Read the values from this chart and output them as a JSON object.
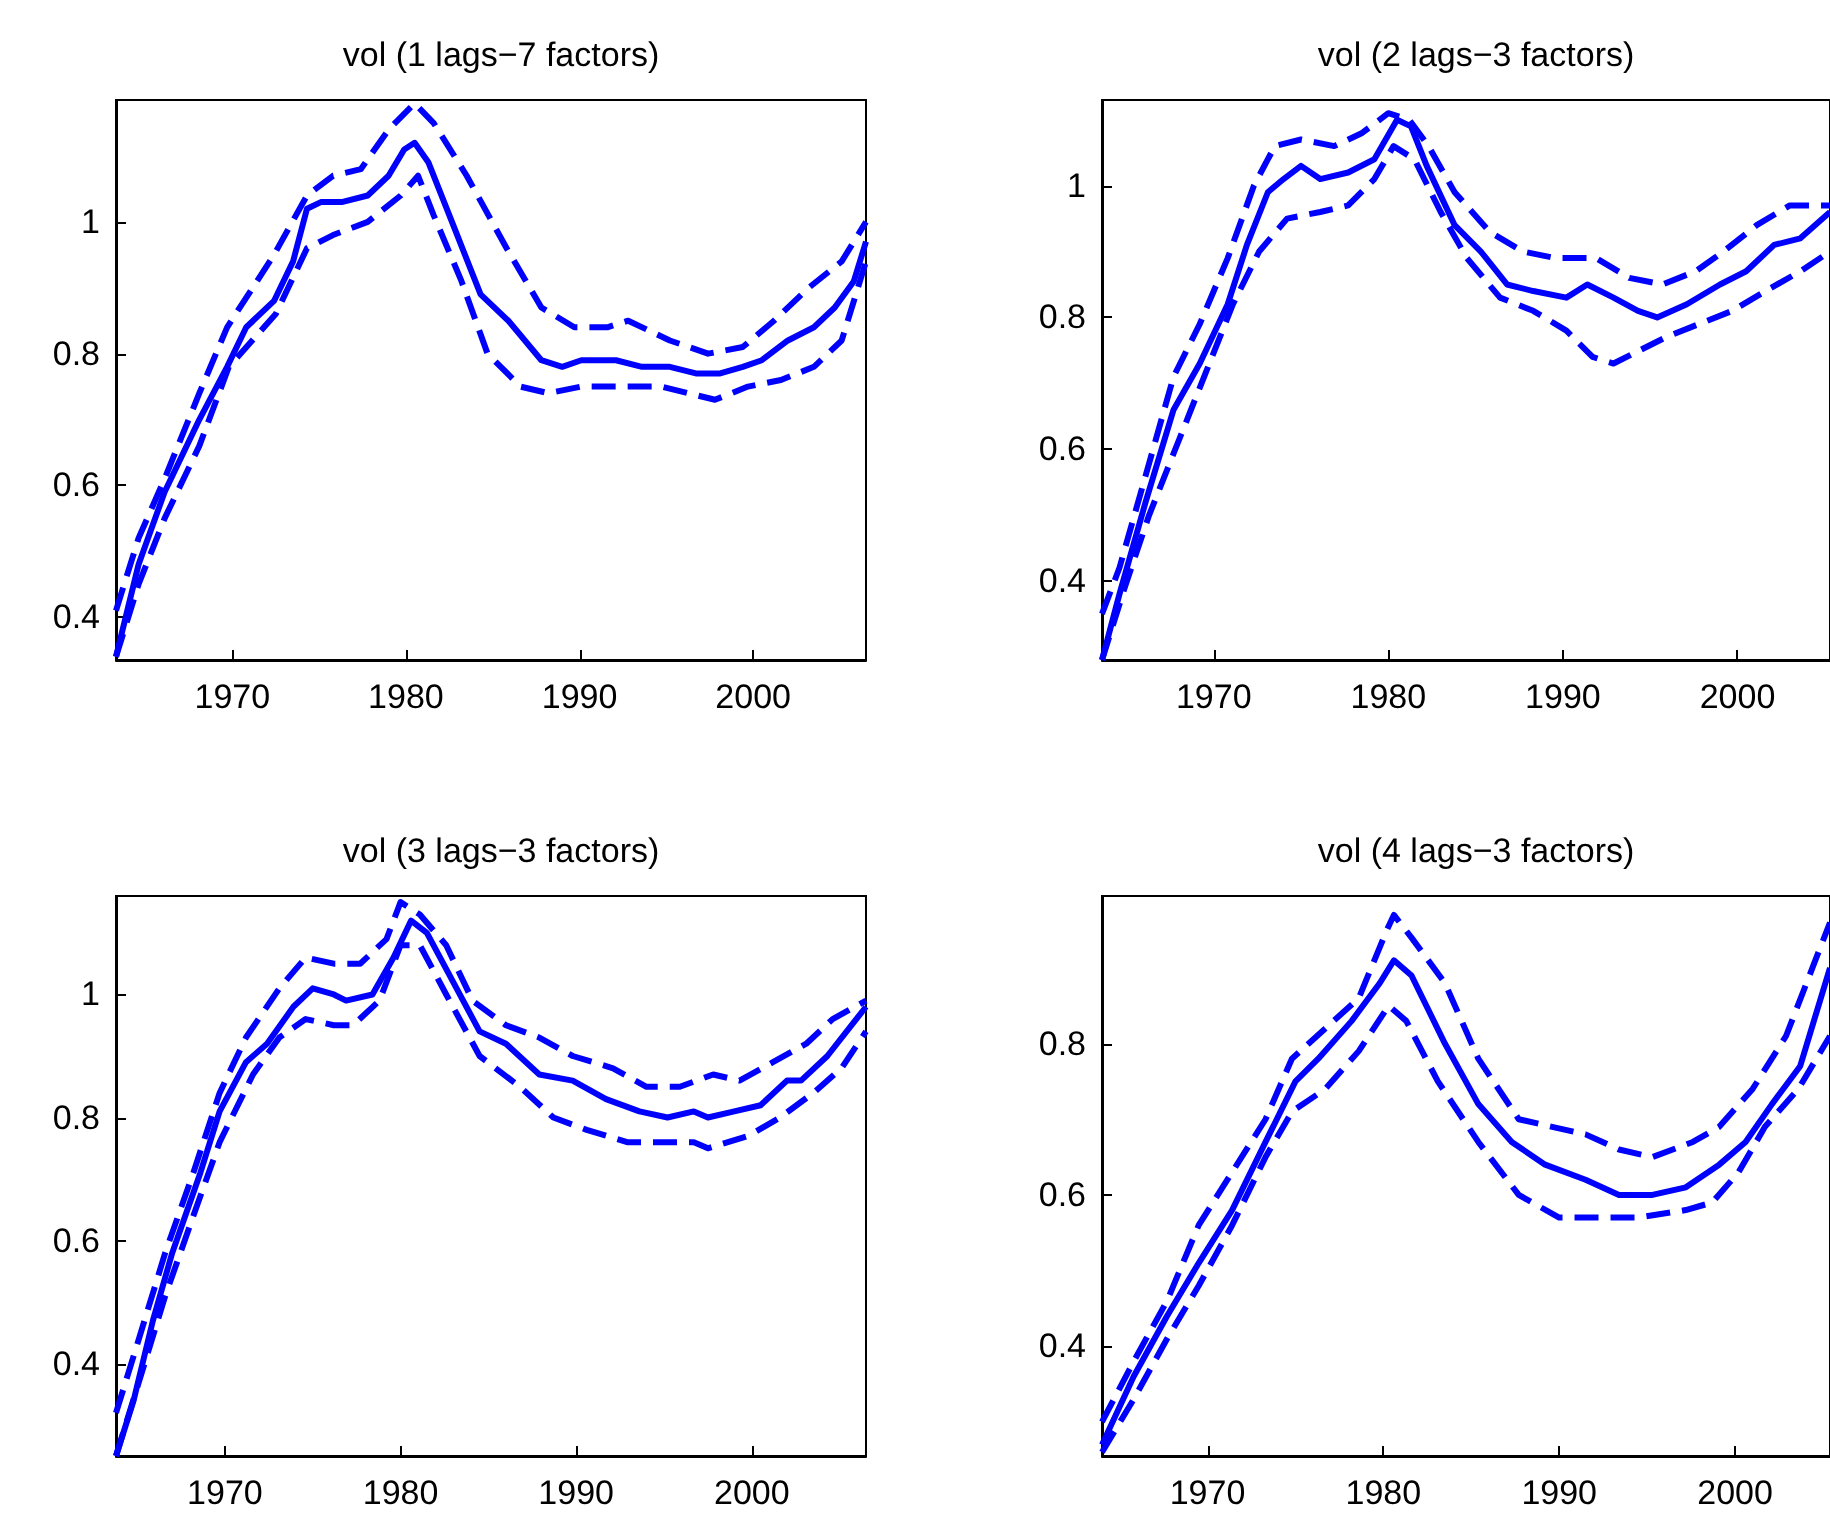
{
  "chart_data": [
    {
      "type": "line",
      "title": "vol (1 lags−7 factors)",
      "xlim": [
        1963.3,
        2006.5
      ],
      "xticks": [
        1970,
        1980,
        1990,
        2000
      ],
      "ylim": [
        0.335,
        1.185
      ],
      "yticks": [
        0.4,
        0.6,
        0.8,
        1
      ],
      "grid": false,
      "series": [
        {
          "color": "#0000ff",
          "line_style": "solid",
          "x": [
            1963.3,
            1964.6,
            1966.1,
            1968.1,
            1969.7,
            1970.8,
            1972.4,
            1973.5,
            1974.3,
            1975.1,
            1976.3,
            1977.8,
            1979.0,
            1979.9,
            1980.5,
            1981.3,
            1982.8,
            1984.3,
            1985.9,
            1987.8,
            1989.0,
            1990.1,
            1992.1,
            1993.6,
            1995.2,
            1996.7,
            1998.1,
            1999.4,
            2000.5,
            2002.0,
            2003.5,
            2004.7,
            2005.8,
            2006.5
          ],
          "values": [
            0.34,
            0.48,
            0.59,
            0.7,
            0.78,
            0.84,
            0.88,
            0.94,
            1.02,
            1.03,
            1.03,
            1.04,
            1.07,
            1.11,
            1.12,
            1.09,
            0.99,
            0.89,
            0.85,
            0.79,
            0.78,
            0.79,
            0.79,
            0.78,
            0.78,
            0.77,
            0.77,
            0.78,
            0.79,
            0.82,
            0.84,
            0.87,
            0.91,
            0.97
          ]
        },
        {
          "color": "#0000ff",
          "line_style": "dashed",
          "x": [
            1963.3,
            1964.6,
            1966.1,
            1968.1,
            1969.7,
            1972.4,
            1974.3,
            1975.8,
            1977.4,
            1979.0,
            1980.5,
            1981.6,
            1983.5,
            1985.8,
            1987.8,
            1989.7,
            1991.6,
            1992.8,
            1995.2,
            1997.4,
            1999.4,
            2001.2,
            2003.2,
            2005.1,
            2006.5
          ],
          "values": [
            0.41,
            0.52,
            0.61,
            0.74,
            0.84,
            0.95,
            1.04,
            1.07,
            1.08,
            1.14,
            1.18,
            1.15,
            1.07,
            0.96,
            0.87,
            0.84,
            0.84,
            0.85,
            0.82,
            0.8,
            0.81,
            0.85,
            0.9,
            0.94,
            1.0
          ]
        },
        {
          "color": "#0000ff",
          "line_style": "dashed",
          "x": [
            1963.3,
            1964.6,
            1966.1,
            1968.1,
            1969.8,
            1972.5,
            1974.3,
            1975.8,
            1977.8,
            1979.7,
            1980.7,
            1981.6,
            1983.2,
            1984.7,
            1986.6,
            1988.2,
            1990.1,
            1992.4,
            1994.7,
            1997.8,
            1999.7,
            2001.6,
            2003.5,
            2005.1,
            2006.5
          ],
          "values": [
            0.34,
            0.45,
            0.55,
            0.66,
            0.78,
            0.86,
            0.96,
            0.98,
            1.0,
            1.04,
            1.07,
            1.01,
            0.91,
            0.8,
            0.75,
            0.74,
            0.75,
            0.75,
            0.75,
            0.73,
            0.75,
            0.76,
            0.78,
            0.82,
            0.94
          ]
        }
      ]
    },
    {
      "type": "line",
      "title": "vol (2 lags−3 factors)",
      "xlim": [
        1963.6,
        2005.3
      ],
      "xticks": [
        1970,
        1980,
        1990,
        2000
      ],
      "ylim": [
        0.28,
        1.13
      ],
      "yticks": [
        0.4,
        0.6,
        0.8,
        1
      ],
      "grid": false,
      "series": [
        {
          "color": "#0000ff",
          "line_style": "solid",
          "x": [
            1963.6,
            1964.6,
            1966.1,
            1967.7,
            1969.2,
            1970.8,
            1971.9,
            1973.1,
            1974.0,
            1975.0,
            1976.1,
            1977.7,
            1979.2,
            1980.5,
            1981.3,
            1982.2,
            1983.8,
            1985.3,
            1986.8,
            1988.3,
            1990.2,
            1991.4,
            1992.9,
            1994.3,
            1995.4,
            1997.1,
            1999.0,
            2000.5,
            2002.1,
            2003.6,
            2005.3
          ],
          "values": [
            0.28,
            0.38,
            0.52,
            0.66,
            0.73,
            0.82,
            0.91,
            0.99,
            1.01,
            1.03,
            1.01,
            1.02,
            1.04,
            1.1,
            1.09,
            1.03,
            0.94,
            0.9,
            0.85,
            0.84,
            0.83,
            0.85,
            0.83,
            0.81,
            0.8,
            0.82,
            0.85,
            0.87,
            0.91,
            0.92,
            0.96
          ]
        },
        {
          "color": "#0000ff",
          "line_style": "dashed",
          "x": [
            1963.6,
            1964.6,
            1966.1,
            1967.7,
            1969.2,
            1970.8,
            1972.3,
            1973.5,
            1975.0,
            1976.9,
            1978.5,
            1980.0,
            1981.2,
            1982.3,
            1983.8,
            1985.8,
            1987.7,
            1989.6,
            1991.9,
            1993.8,
            1995.7,
            1997.6,
            1999.2,
            2001.1,
            2003.0,
            2005.3
          ],
          "values": [
            0.35,
            0.42,
            0.56,
            0.71,
            0.79,
            0.89,
            1.0,
            1.06,
            1.07,
            1.06,
            1.08,
            1.11,
            1.1,
            1.06,
            0.99,
            0.93,
            0.9,
            0.89,
            0.89,
            0.86,
            0.85,
            0.87,
            0.9,
            0.94,
            0.97,
            0.97
          ]
        },
        {
          "color": "#0000ff",
          "line_style": "dashed",
          "x": [
            1963.6,
            1964.9,
            1966.3,
            1968.1,
            1969.6,
            1971.1,
            1972.6,
            1974.2,
            1976.1,
            1977.7,
            1979.2,
            1980.3,
            1981.5,
            1983.0,
            1984.5,
            1986.4,
            1988.3,
            1990.2,
            1991.7,
            1992.9,
            1994.4,
            1995.9,
            1997.8,
            1999.7,
            2001.6,
            2003.6,
            2005.3
          ],
          "values": [
            0.28,
            0.39,
            0.5,
            0.62,
            0.72,
            0.82,
            0.9,
            0.95,
            0.96,
            0.97,
            1.01,
            1.06,
            1.04,
            0.96,
            0.89,
            0.83,
            0.81,
            0.78,
            0.74,
            0.73,
            0.75,
            0.77,
            0.79,
            0.81,
            0.84,
            0.87,
            0.9
          ]
        }
      ]
    },
    {
      "type": "line",
      "title": "vol (3 lags−3 factors)",
      "xlim": [
        1963.8,
        2006.5
      ],
      "xticks": [
        1970,
        1980,
        1990,
        2000
      ],
      "ylim": [
        0.25,
        1.16
      ],
      "yticks": [
        0.4,
        0.6,
        0.8,
        1
      ],
      "grid": false,
      "series": [
        {
          "color": "#0000ff",
          "line_style": "solid",
          "x": [
            1963.8,
            1964.8,
            1965.9,
            1967.0,
            1968.6,
            1969.7,
            1971.2,
            1972.4,
            1973.9,
            1975.0,
            1976.2,
            1976.9,
            1978.4,
            1979.6,
            1980.6,
            1981.5,
            1983.0,
            1984.5,
            1986.0,
            1987.9,
            1989.8,
            1991.7,
            1993.6,
            1995.2,
            1996.7,
            1997.5,
            1999.0,
            2000.5,
            2002.0,
            2002.8,
            2004.3,
            2006.5
          ],
          "values": [
            0.25,
            0.34,
            0.47,
            0.58,
            0.71,
            0.81,
            0.89,
            0.92,
            0.98,
            1.01,
            1.0,
            0.99,
            1.0,
            1.06,
            1.12,
            1.1,
            1.02,
            0.94,
            0.92,
            0.87,
            0.86,
            0.83,
            0.81,
            0.8,
            0.81,
            0.8,
            0.81,
            0.82,
            0.86,
            0.86,
            0.9,
            0.98
          ]
        },
        {
          "color": "#0000ff",
          "line_style": "dashed",
          "x": [
            1963.8,
            1965.1,
            1966.6,
            1968.2,
            1969.7,
            1971.2,
            1973.1,
            1974.6,
            1976.2,
            1977.7,
            1979.2,
            1980.0,
            1981.1,
            1982.6,
            1984.1,
            1986.0,
            1987.9,
            1989.8,
            1992.1,
            1994.0,
            1995.9,
            1997.8,
            1999.3,
            2001.2,
            2003.1,
            2004.6,
            2006.5
          ],
          "values": [
            0.32,
            0.44,
            0.58,
            0.71,
            0.84,
            0.93,
            1.01,
            1.06,
            1.05,
            1.05,
            1.09,
            1.15,
            1.13,
            1.08,
            0.99,
            0.95,
            0.93,
            0.9,
            0.88,
            0.85,
            0.85,
            0.87,
            0.86,
            0.89,
            0.92,
            0.96,
            0.99
          ]
        },
        {
          "color": "#0000ff",
          "line_style": "dashed",
          "x": [
            1963.8,
            1965.1,
            1966.6,
            1968.2,
            1969.7,
            1971.6,
            1973.1,
            1974.6,
            1976.2,
            1977.3,
            1978.8,
            1980.0,
            1981.1,
            1982.6,
            1984.5,
            1986.8,
            1988.7,
            1990.6,
            1992.9,
            1994.8,
            1996.7,
            1997.5,
            1999.8,
            2001.6,
            2003.5,
            2005.1,
            2006.5
          ],
          "values": [
            0.25,
            0.37,
            0.51,
            0.64,
            0.76,
            0.87,
            0.93,
            0.96,
            0.95,
            0.95,
            0.99,
            1.08,
            1.08,
            1.0,
            0.9,
            0.85,
            0.8,
            0.78,
            0.76,
            0.76,
            0.76,
            0.75,
            0.77,
            0.8,
            0.84,
            0.88,
            0.94
          ]
        }
      ]
    },
    {
      "type": "line",
      "title": "vol (4 lags−3 factors)",
      "xlim": [
        1964.0,
        2005.4
      ],
      "xticks": [
        1970,
        1980,
        1990,
        2000
      ],
      "ylim": [
        0.255,
        0.995
      ],
      "yticks": [
        0.4,
        0.6,
        0.8
      ],
      "grid": false,
      "series": [
        {
          "color": "#0000ff",
          "line_style": "solid",
          "x": [
            1964.0,
            1965.8,
            1967.7,
            1969.5,
            1971.4,
            1973.3,
            1975.0,
            1976.3,
            1978.2,
            1979.8,
            1980.6,
            1981.6,
            1983.5,
            1985.4,
            1987.3,
            1989.2,
            1991.5,
            1993.4,
            1995.3,
            1997.2,
            1999.1,
            2000.6,
            2002.1,
            2003.7,
            2005.4
          ],
          "values": [
            0.27,
            0.36,
            0.44,
            0.51,
            0.58,
            0.67,
            0.75,
            0.78,
            0.83,
            0.88,
            0.91,
            0.89,
            0.8,
            0.72,
            0.67,
            0.64,
            0.62,
            0.6,
            0.6,
            0.61,
            0.64,
            0.67,
            0.72,
            0.77,
            0.9
          ]
        },
        {
          "color": "#0000ff",
          "line_style": "dashed",
          "x": [
            1964.0,
            1965.8,
            1967.7,
            1969.5,
            1971.4,
            1973.3,
            1974.8,
            1976.7,
            1978.6,
            1980.2,
            1980.6,
            1981.6,
            1983.5,
            1985.4,
            1987.7,
            1989.6,
            1991.5,
            1993.4,
            1995.3,
            1997.6,
            1999.1,
            2001.0,
            2002.9,
            2004.4,
            2005.4
          ],
          "values": [
            0.3,
            0.38,
            0.46,
            0.56,
            0.63,
            0.7,
            0.78,
            0.82,
            0.86,
            0.95,
            0.97,
            0.94,
            0.88,
            0.78,
            0.7,
            0.69,
            0.68,
            0.66,
            0.65,
            0.67,
            0.69,
            0.74,
            0.81,
            0.9,
            0.96
          ]
        },
        {
          "color": "#0000ff",
          "line_style": "dashed",
          "x": [
            1964.0,
            1965.8,
            1967.7,
            1969.5,
            1971.4,
            1973.3,
            1974.8,
            1976.7,
            1978.6,
            1980.3,
            1981.3,
            1983.1,
            1985.4,
            1987.7,
            1990.0,
            1992.3,
            1994.5,
            1997.2,
            1998.7,
            2000.2,
            2001.7,
            2003.6,
            2005.4
          ],
          "values": [
            0.26,
            0.33,
            0.41,
            0.48,
            0.56,
            0.65,
            0.71,
            0.74,
            0.79,
            0.85,
            0.83,
            0.75,
            0.67,
            0.6,
            0.57,
            0.57,
            0.57,
            0.58,
            0.59,
            0.63,
            0.69,
            0.74,
            0.81
          ]
        }
      ]
    }
  ]
}
